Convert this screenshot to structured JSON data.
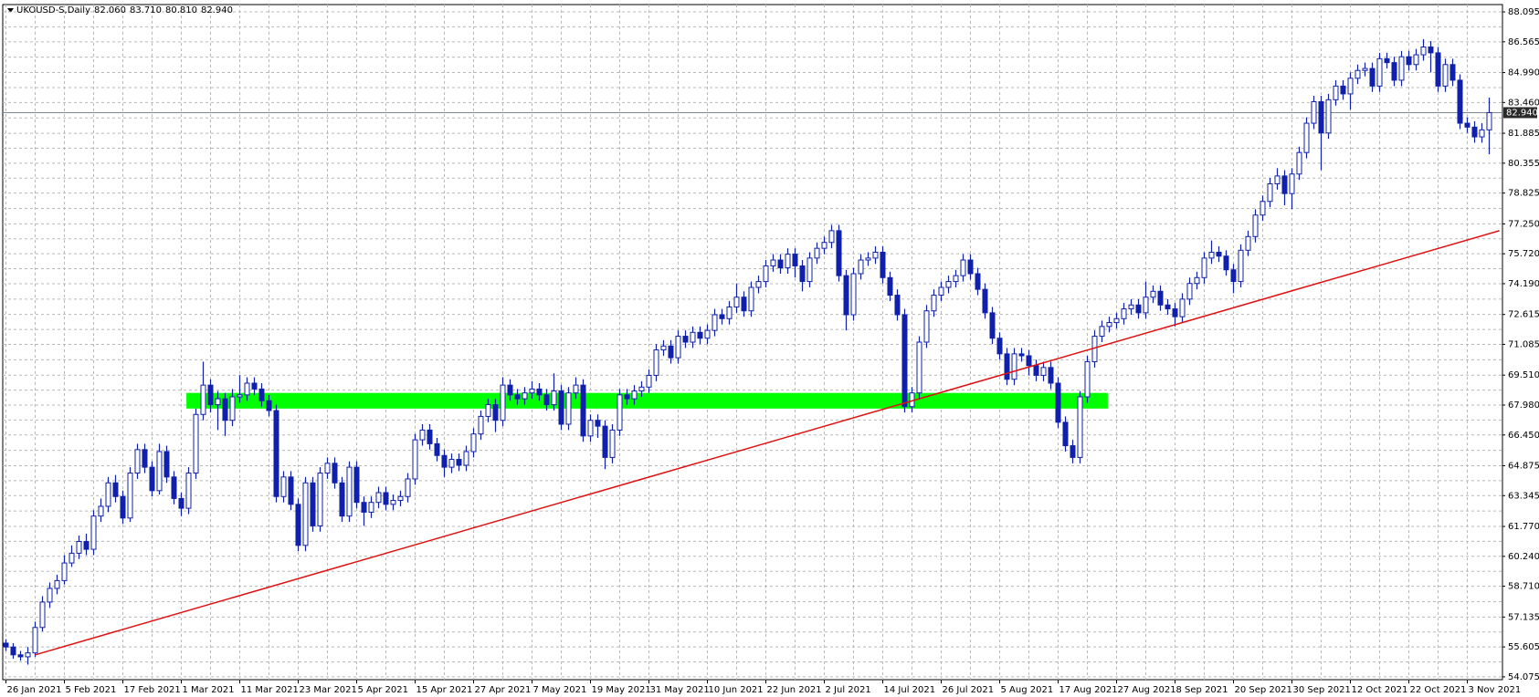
{
  "chart_data": {
    "type": "candlestick",
    "title": "UKOUSD-S,Daily",
    "header_values": [
      {
        "value": 82.06,
        "label": "82.060"
      },
      {
        "value": 83.71,
        "label": "83.710"
      },
      {
        "value": 80.81,
        "label": "80.810"
      },
      {
        "value": 82.94,
        "label": "82.940"
      }
    ],
    "categories": [
      "26 Jan 2021",
      null,
      null,
      null,
      null,
      null,
      null,
      null,
      "5 Feb 2021",
      null,
      null,
      null,
      null,
      null,
      null,
      null,
      "17 Feb 2021",
      null,
      null,
      null,
      null,
      null,
      null,
      null,
      "1 Mar 2021",
      null,
      null,
      null,
      null,
      null,
      null,
      null,
      "11 Mar 2021",
      null,
      null,
      null,
      null,
      null,
      null,
      null,
      "23 Mar 2021",
      null,
      null,
      null,
      null,
      null,
      null,
      null,
      "5 Apr 2021",
      null,
      null,
      null,
      null,
      null,
      null,
      null,
      "15 Apr 2021",
      null,
      null,
      null,
      null,
      null,
      null,
      null,
      "27 Apr 2021",
      null,
      null,
      null,
      null,
      null,
      null,
      null,
      "7 May 2021",
      null,
      null,
      null,
      null,
      null,
      null,
      null,
      "19 May 2021",
      null,
      null,
      null,
      null,
      null,
      null,
      null,
      "31 May 2021",
      null,
      null,
      null,
      null,
      null,
      null,
      null,
      "10 Jun 2021",
      null,
      null,
      null,
      null,
      null,
      null,
      null,
      "22 Jun 2021",
      null,
      null,
      null,
      null,
      null,
      null,
      null,
      "2 Jul 2021",
      null,
      null,
      null,
      null,
      null,
      null,
      null,
      "14 Jul 2021",
      null,
      null,
      null,
      null,
      null,
      null,
      null,
      "26 Jul 2021",
      null,
      null,
      null,
      null,
      null,
      null,
      null,
      "5 Aug 2021",
      null,
      null,
      null,
      null,
      null,
      null,
      null,
      "17 Aug 2021",
      null,
      null,
      null,
      null,
      null,
      null,
      null,
      "27 Aug 2021",
      null,
      null,
      null,
      null,
      null,
      null,
      null,
      "8 Sep 2021",
      null,
      null,
      null,
      null,
      null,
      null,
      null,
      "20 Sep 2021",
      null,
      null,
      null,
      null,
      null,
      null,
      null,
      "30 Sep 2021",
      null,
      null,
      null,
      null,
      null,
      null,
      null,
      "12 Oct 2021",
      null,
      null,
      null,
      null,
      null,
      null,
      null,
      "22 Oct 2021",
      null,
      null,
      null,
      null,
      null,
      null,
      null,
      "3 Nov 2021",
      null,
      null,
      null
    ],
    "open": [
      55.8,
      55.6,
      55.2,
      55.1,
      55.3,
      56.6,
      57.9,
      58.6,
      59.0,
      59.9,
      60.4,
      61.0,
      60.6,
      62.3,
      62.8,
      64.0,
      63.3,
      62.2,
      64.5,
      65.7,
      64.8,
      63.6,
      65.6,
      64.3,
      63.2,
      62.7,
      64.5,
      67.5,
      69.0,
      68.0,
      68.3,
      67.2,
      68.4,
      68.5,
      69.1,
      68.8,
      68.2,
      67.7,
      63.3,
      64.3,
      62.9,
      60.8,
      64.0,
      61.8,
      64.5,
      65.0,
      64.0,
      62.3,
      64.8,
      63.0,
      62.5,
      63.0,
      63.5,
      62.9,
      63.1,
      63.3,
      64.2,
      66.2,
      66.7,
      66.0,
      65.4,
      64.8,
      65.2,
      64.9,
      65.6,
      66.5,
      67.4,
      68.0,
      67.2,
      69.0,
      68.5,
      68.3,
      68.6,
      68.8,
      68.5,
      68.0,
      68.7,
      67.0,
      68.6,
      69.0,
      66.4,
      67.2,
      66.9,
      65.3,
      66.7,
      68.5,
      68.3,
      68.7,
      68.9,
      69.5,
      70.8,
      71.0,
      70.4,
      71.5,
      71.2,
      71.7,
      71.4,
      71.8,
      72.6,
      72.4,
      73.0,
      73.5,
      72.8,
      74.0,
      74.3,
      75.1,
      75.4,
      75.0,
      75.7,
      75.1,
      74.3,
      75.5,
      76.0,
      76.3,
      76.9,
      74.6,
      72.6,
      74.7,
      75.4,
      75.5,
      75.8,
      74.5,
      73.6,
      72.6,
      67.9,
      68.6,
      71.2,
      72.8,
      73.6,
      74.0,
      74.3,
      74.6,
      75.4,
      74.7,
      73.9,
      72.7,
      71.4,
      70.6,
      69.3,
      70.6,
      70.5,
      70.0,
      69.5,
      69.9,
      69.1,
      67.1,
      65.9,
      65.3,
      68.4,
      70.2,
      71.5,
      72.0,
      72.2,
      72.4,
      72.9,
      73.1,
      72.7,
      73.5,
      73.8,
      73.1,
      72.9,
      72.5,
      73.4,
      74.2,
      74.5,
      75.5,
      75.8,
      75.6,
      74.9,
      74.3,
      75.9,
      76.6,
      77.7,
      78.4,
      79.3,
      79.7,
      78.8,
      79.8,
      80.9,
      82.4,
      83.5,
      81.9,
      83.6,
      84.3,
      83.9,
      84.7,
      85.1,
      85.2,
      84.3,
      85.7,
      85.5,
      84.6,
      85.8,
      85.4,
      85.9,
      86.3,
      86.0,
      84.3,
      85.4,
      84.6,
      82.4,
      82.2,
      81.7,
      82.06
    ],
    "high": [
      56.0,
      55.8,
      55.4,
      55.6,
      56.9,
      58.2,
      58.9,
      59.3,
      60.3,
      60.8,
      61.3,
      61.4,
      62.6,
      63.2,
      64.3,
      64.4,
      63.6,
      64.8,
      66.0,
      66.0,
      65.1,
      66.0,
      65.9,
      64.6,
      63.5,
      64.8,
      67.8,
      70.2,
      69.3,
      68.7,
      68.6,
      68.8,
      69.5,
      69.4,
      69.4,
      69.1,
      68.5,
      68.0,
      64.6,
      64.6,
      63.2,
      64.3,
      64.3,
      64.8,
      65.3,
      65.3,
      64.3,
      65.1,
      65.1,
      63.3,
      63.3,
      63.8,
      63.8,
      63.4,
      63.6,
      64.5,
      66.5,
      67.0,
      67.0,
      66.3,
      65.7,
      65.5,
      65.5,
      65.9,
      66.8,
      67.7,
      68.3,
      68.3,
      69.4,
      69.3,
      68.8,
      68.9,
      69.2,
      69.1,
      68.8,
      69.6,
      69.0,
      68.9,
      69.4,
      69.3,
      67.5,
      67.5,
      67.2,
      67.0,
      68.8,
      68.8,
      69.0,
      69.2,
      69.8,
      71.1,
      71.3,
      71.3,
      71.8,
      71.8,
      72.0,
      72.0,
      72.1,
      72.9,
      72.9,
      73.3,
      74.2,
      73.8,
      74.3,
      74.6,
      75.4,
      75.7,
      75.7,
      76.0,
      76.0,
      75.4,
      75.8,
      76.3,
      76.6,
      77.2,
      77.2,
      74.9,
      75.0,
      75.7,
      75.8,
      76.1,
      76.1,
      74.8,
      73.9,
      72.9,
      68.9,
      71.5,
      73.1,
      73.9,
      74.3,
      74.6,
      74.9,
      75.7,
      75.7,
      75.0,
      74.2,
      73.0,
      71.7,
      70.9,
      70.9,
      70.9,
      70.8,
      70.3,
      70.2,
      70.2,
      69.4,
      67.4,
      66.2,
      68.7,
      70.5,
      71.8,
      72.3,
      72.5,
      72.7,
      73.2,
      73.4,
      73.4,
      74.3,
      74.1,
      74.1,
      73.4,
      73.2,
      73.7,
      74.5,
      74.8,
      75.8,
      76.4,
      76.1,
      75.9,
      75.2,
      76.2,
      76.9,
      78.0,
      78.7,
      79.6,
      80.1,
      80.0,
      80.1,
      81.2,
      82.7,
      83.8,
      83.8,
      83.9,
      84.6,
      84.6,
      85.0,
      85.4,
      85.5,
      85.5,
      86.0,
      86.0,
      85.8,
      86.1,
      86.1,
      86.2,
      86.7,
      86.6,
      86.3,
      85.7,
      85.7,
      84.9,
      82.7,
      82.5,
      82.4,
      83.71
    ],
    "low": [
      55.4,
      55.0,
      54.9,
      54.7,
      55.1,
      56.4,
      57.6,
      58.3,
      58.8,
      59.7,
      60.1,
      60.3,
      60.3,
      62.0,
      62.5,
      63.0,
      61.9,
      62.0,
      64.2,
      64.5,
      63.3,
      63.4,
      64.0,
      62.9,
      62.3,
      62.4,
      64.2,
      67.2,
      67.6,
      66.7,
      66.4,
      66.9,
      68.1,
      68.2,
      68.5,
      67.9,
      67.4,
      63.0,
      63.0,
      62.6,
      60.5,
      60.5,
      61.5,
      61.5,
      64.2,
      63.7,
      62.0,
      62.0,
      62.7,
      61.8,
      62.2,
      62.7,
      62.6,
      62.6,
      62.8,
      63.0,
      63.9,
      65.9,
      65.7,
      65.1,
      64.3,
      64.5,
      64.6,
      64.6,
      65.3,
      66.2,
      67.1,
      66.6,
      66.9,
      68.2,
      68.0,
      68.0,
      68.3,
      68.2,
      67.7,
      67.7,
      66.7,
      66.7,
      68.3,
      66.1,
      66.1,
      66.3,
      64.7,
      65.0,
      66.4,
      68.0,
      68.0,
      68.4,
      68.6,
      69.2,
      70.5,
      70.1,
      70.1,
      70.9,
      70.9,
      71.1,
      71.1,
      71.5,
      72.1,
      72.1,
      72.7,
      72.5,
      72.5,
      73.7,
      74.0,
      74.8,
      74.7,
      74.7,
      74.5,
      73.8,
      74.0,
      75.2,
      75.7,
      76.0,
      74.3,
      71.8,
      72.3,
      74.4,
      75.1,
      75.2,
      74.2,
      73.3,
      72.3,
      67.6,
      67.6,
      68.3,
      70.9,
      72.5,
      73.3,
      73.7,
      74.0,
      74.3,
      74.4,
      73.6,
      72.4,
      71.1,
      70.3,
      69.0,
      69.0,
      70.2,
      69.5,
      69.2,
      69.2,
      68.8,
      66.8,
      65.6,
      65.0,
      65.0,
      68.1,
      69.9,
      71.2,
      71.7,
      71.9,
      72.1,
      72.6,
      72.4,
      72.4,
      73.2,
      72.8,
      72.6,
      72.0,
      72.2,
      73.1,
      73.9,
      74.2,
      75.2,
      75.3,
      74.6,
      73.7,
      74.0,
      75.6,
      76.3,
      77.4,
      78.1,
      79.0,
      78.2,
      78.0,
      79.5,
      80.6,
      82.1,
      80.0,
      81.6,
      83.3,
      83.6,
      83.1,
      84.4,
      84.8,
      84.0,
      84.0,
      85.2,
      84.3,
      84.3,
      85.1,
      85.1,
      85.6,
      85.0,
      84.0,
      84.0,
      84.3,
      82.1,
      81.9,
      81.4,
      81.4,
      80.81
    ],
    "close": [
      55.6,
      55.2,
      55.1,
      55.3,
      56.6,
      57.9,
      58.6,
      59.0,
      59.9,
      60.4,
      61.0,
      60.6,
      62.3,
      62.8,
      64.0,
      63.3,
      62.2,
      64.5,
      65.7,
      64.8,
      63.6,
      65.6,
      64.3,
      63.2,
      62.7,
      64.5,
      67.5,
      69.0,
      68.0,
      68.3,
      67.2,
      68.4,
      68.5,
      69.1,
      68.8,
      68.2,
      67.7,
      63.3,
      64.3,
      62.9,
      60.8,
      64.0,
      61.8,
      64.5,
      65.0,
      64.0,
      62.3,
      64.8,
      63.0,
      62.5,
      63.0,
      63.5,
      62.9,
      63.1,
      63.3,
      64.2,
      66.2,
      66.7,
      66.0,
      65.4,
      64.8,
      65.2,
      64.9,
      65.6,
      66.5,
      67.4,
      68.0,
      67.2,
      69.0,
      68.5,
      68.3,
      68.6,
      68.8,
      68.5,
      68.0,
      68.7,
      67.0,
      68.6,
      69.0,
      66.4,
      67.2,
      66.9,
      65.3,
      66.7,
      68.5,
      68.3,
      68.7,
      68.9,
      69.5,
      70.8,
      71.0,
      70.4,
      71.5,
      71.2,
      71.7,
      71.4,
      71.8,
      72.6,
      72.4,
      73.0,
      73.5,
      72.8,
      74.0,
      74.3,
      75.1,
      75.4,
      75.0,
      75.7,
      75.1,
      74.3,
      75.5,
      76.0,
      76.3,
      76.9,
      74.6,
      72.6,
      74.7,
      75.4,
      75.5,
      75.8,
      74.5,
      73.6,
      72.6,
      67.9,
      68.6,
      71.2,
      72.8,
      73.6,
      74.0,
      74.3,
      74.6,
      75.4,
      74.7,
      73.9,
      72.7,
      71.4,
      70.6,
      69.3,
      70.6,
      70.5,
      70.0,
      69.5,
      69.9,
      69.1,
      67.1,
      65.9,
      65.3,
      68.4,
      70.2,
      71.5,
      72.0,
      72.2,
      72.4,
      72.9,
      73.1,
      72.7,
      73.5,
      73.8,
      73.1,
      72.9,
      72.5,
      73.4,
      74.2,
      74.5,
      75.5,
      75.8,
      75.6,
      74.9,
      74.3,
      75.9,
      76.6,
      77.7,
      78.4,
      79.3,
      79.7,
      78.8,
      79.8,
      80.9,
      82.4,
      83.5,
      81.9,
      83.6,
      84.3,
      83.9,
      84.7,
      85.1,
      85.2,
      84.3,
      85.7,
      85.5,
      84.6,
      85.8,
      85.4,
      85.9,
      86.3,
      86.0,
      84.3,
      85.4,
      84.6,
      82.4,
      82.2,
      81.7,
      82.06,
      82.94
    ],
    "color": "#1020a8",
    "ylim": [
      53.93,
      88.47
    ],
    "yticks": [
      88.095,
      86.565,
      {
        "value": 84.99,
        "label": "84.990"
      },
      {
        "value": 83.46,
        "label": "83.460"
      },
      81.885,
      80.355,
      78.825,
      {
        "value": 77.25,
        "label": "77.250"
      },
      {
        "value": 75.72,
        "label": "75.720"
      },
      {
        "value": 74.19,
        "label": "74.190"
      },
      72.615,
      71.085,
      {
        "value": 69.51,
        "label": "69.510"
      },
      {
        "value": 67.98,
        "label": "67.980"
      },
      {
        "value": 66.45,
        "label": "66.450"
      },
      64.875,
      63.345,
      {
        "value": 61.77,
        "label": "61.770"
      },
      {
        "value": 60.24,
        "label": "60.240"
      },
      {
        "value": 58.71,
        "label": "58.710"
      },
      57.135,
      55.605,
      54.075
    ],
    "grid": true,
    "bid": {
      "value": 82.94,
      "label": "82.940",
      "color": "#7a8899"
    },
    "zone": {
      "x": [
        24.7,
        150.8
      ],
      "y": [
        67.8,
        68.6
      ],
      "color": "#00ff00"
    },
    "trendline": {
      "x": [
        4,
        204.4
      ],
      "y": [
        55.2,
        76.9
      ],
      "color": "#e01010"
    }
  }
}
